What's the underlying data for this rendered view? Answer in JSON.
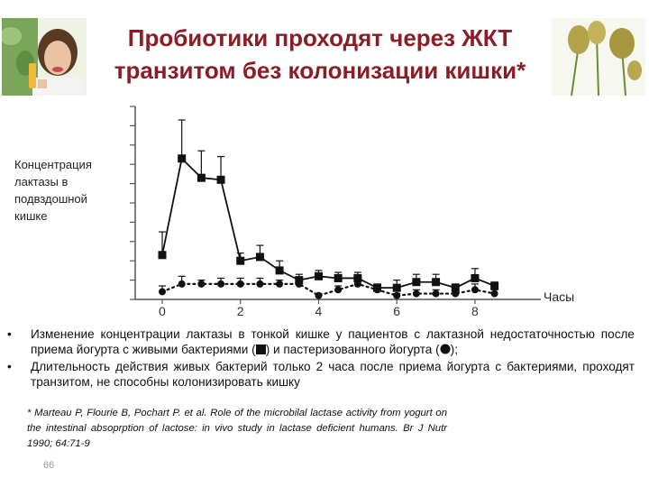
{
  "slide": {
    "title": "Пробиотики проходят через ЖКТ транзитом без колонизации кишки*",
    "page_number": "66",
    "photo_left_icon": "woman-eating-yogurt-photo",
    "photo_right_icon": "plant-seedheads-photo",
    "colors": {
      "title": "#8a1e24",
      "text": "#111111"
    }
  },
  "chart_data": {
    "type": "line",
    "ylabel": "Концентрация лактазы в подвздошной кишке",
    "xlabel": "Часы",
    "x_ticks": [
      "0",
      "2",
      "4",
      "6",
      "8"
    ],
    "xlim": [
      0,
      9.5
    ],
    "ylim": [
      0,
      10
    ],
    "grid": false,
    "series": [
      {
        "marker": "square",
        "line_style": "solid",
        "color": "#111111",
        "x": [
          0,
          0.5,
          1,
          1.5,
          2,
          2.5,
          3,
          3.5,
          4,
          4.5,
          5,
          5.5,
          6,
          6.5,
          7,
          7.5,
          8,
          8.5
        ],
        "y": [
          2.3,
          7.3,
          6.3,
          6.2,
          2.0,
          2.2,
          1.5,
          1.0,
          1.2,
          1.1,
          1.1,
          0.6,
          0.6,
          0.9,
          0.9,
          0.6,
          1.1,
          0.7
        ],
        "error": [
          1.2,
          2.0,
          1.4,
          1.2,
          0.4,
          0.6,
          0.5,
          0.3,
          0.3,
          0.3,
          0.3,
          0.2,
          0.4,
          0.4,
          0.4,
          0.2,
          0.5,
          0.2
        ]
      },
      {
        "marker": "circle",
        "line_style": "dotted",
        "color": "#111111",
        "x": [
          0,
          0.5,
          1,
          1.5,
          2,
          2.5,
          3,
          3.5,
          4,
          4.5,
          5,
          5.5,
          6,
          6.5,
          7,
          7.5,
          8,
          8.5
        ],
        "y": [
          0.4,
          0.8,
          0.8,
          0.8,
          0.8,
          0.8,
          0.8,
          0.8,
          0.2,
          0.5,
          0.8,
          0.5,
          0.2,
          0.3,
          0.3,
          0.3,
          0.5,
          0.3
        ],
        "error": [
          0.3,
          0.4,
          0.2,
          0.3,
          0.3,
          0.3,
          0.2,
          0.3,
          0.1,
          0.2,
          0.3,
          0.2,
          0.1,
          0.2,
          0.2,
          0.1,
          0.3,
          0.2
        ]
      }
    ]
  },
  "bullets": [
    {
      "marker": "•",
      "pre": "Изменение концентрации лактазы в тонкой кишке у пациентов с лактазной недостаточностью после приема йогурта с живыми бактериями (",
      "icon1": "square-marker-icon",
      "mid": ") и пастеризованного йогурта (",
      "icon2": "circle-marker-icon",
      "post": ");"
    },
    {
      "marker": "•",
      "text": "Длительность действия живых бактерий только 2 часа после приема йогурта с бактериями, проходят транзитом, не способны колонизировать кишку"
    }
  ],
  "reference": "* Marteau P, Flourie B, Pochart P. et al. Role of the microbilal lactase activity from yogurt on the intestinal absoprption of lactose: in vivo study in lactase deficient humans. Br J Nutr 1990; 64:71-9"
}
